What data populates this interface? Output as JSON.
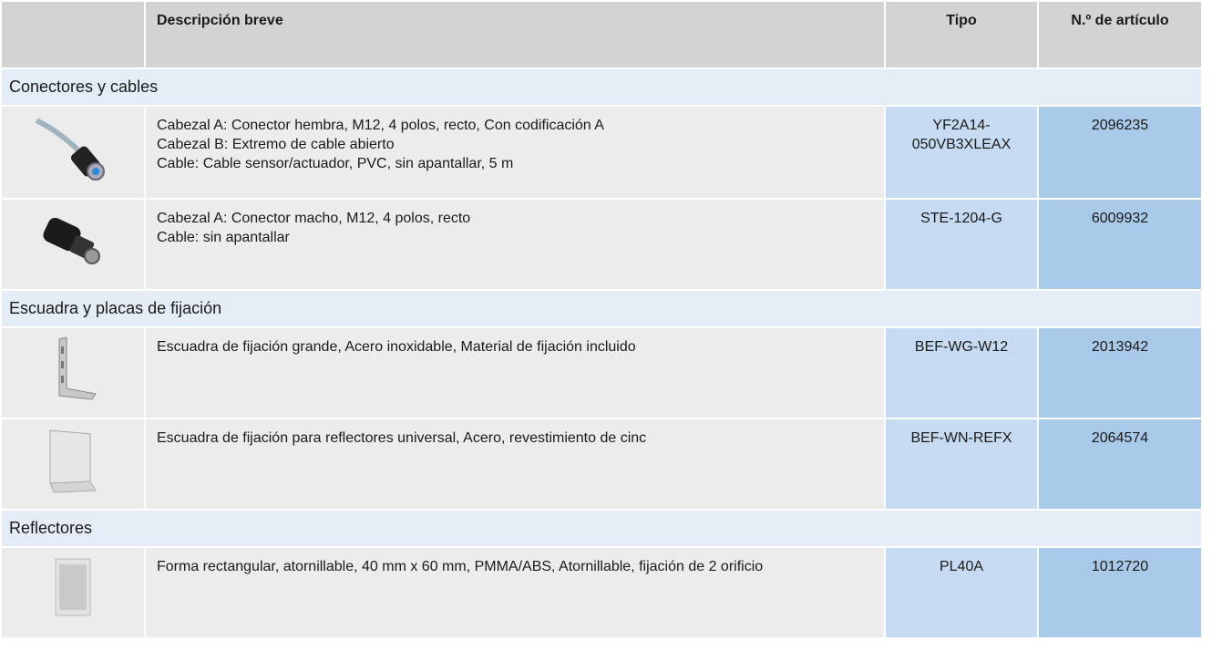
{
  "header": {
    "columns": [
      "Descripción breve",
      "Tipo",
      "N.º de artículo"
    ]
  },
  "groups": [
    {
      "title": "Conectores y cables",
      "rows": [
        {
          "description": [
            "Cabezal A: Conector hembra, M12, 4 polos, recto, Con codificación A",
            "Cabezal B: Extremo de cable abierto",
            "Cable: Cable sensor/actuador, PVC, sin apantallar, 5 m"
          ],
          "tipo": "YF2A14-050VB3XLEAX",
          "articulo": "2096235"
        },
        {
          "description": [
            "Cabezal A: Conector macho, M12, 4 polos, recto",
            "Cable: sin apantallar"
          ],
          "tipo": "STE-1204-G",
          "articulo": "6009932"
        }
      ]
    },
    {
      "title": "Escuadra y placas de fijación",
      "rows": [
        {
          "description": [
            "Escuadra de fijación grande, Acero inoxidable, Material de fijación incluido"
          ],
          "tipo": "BEF-WG-W12",
          "articulo": "2013942"
        },
        {
          "description": [
            "Escuadra de fijación para reflectores universal, Acero, revestimiento de cinc"
          ],
          "tipo": "BEF-WN-REFX",
          "articulo": "2064574"
        }
      ]
    },
    {
      "title": "Reflectores",
      "rows": [
        {
          "description": [
            "Forma rectangular, atornillable, 40 mm x 60 mm, PMMA/ABS, Atornillable, fijación de 2 orificio"
          ],
          "tipo": "PL40A",
          "articulo": "1012720"
        }
      ]
    }
  ]
}
